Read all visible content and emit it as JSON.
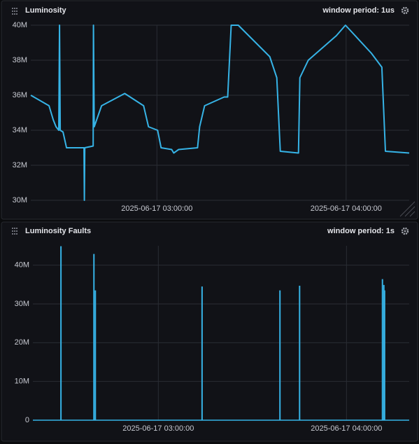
{
  "chart_data": [
    {
      "type": "line",
      "title": "Luminosity",
      "subtitle": "window period: 1us",
      "color": "#36b3e6",
      "grid": true,
      "xlim": [
        "2025-06-17 02:20:00",
        "2025-06-17 04:20:00"
      ],
      "xticks": [
        "2025-06-17 03:00:00",
        "2025-06-17 04:00:00"
      ],
      "ylim": [
        30000000,
        40000000
      ],
      "yticks": [
        {
          "value": 30000000,
          "label": "30M"
        },
        {
          "value": 32000000,
          "label": "32M"
        },
        {
          "value": 34000000,
          "label": "34M"
        },
        {
          "value": 36000000,
          "label": "36M"
        },
        {
          "value": 38000000,
          "label": "38M"
        },
        {
          "value": 40000000,
          "label": "40M"
        }
      ],
      "x": [
        "2025-06-17 02:20:00",
        "2025-06-17 02:25:47",
        "2025-06-17 02:27:07",
        "2025-06-17 02:28:00",
        "2025-06-17 02:28:53",
        "2025-06-17 02:29:07",
        "2025-06-17 02:29:20",
        "2025-06-17 02:30:13",
        "2025-06-17 02:31:20",
        "2025-06-17 02:36:53",
        "2025-06-17 02:37:00",
        "2025-06-17 02:37:07",
        "2025-06-17 02:39:47",
        "2025-06-17 02:39:53",
        "2025-06-17 02:40:07",
        "2025-06-17 02:42:27",
        "2025-06-17 02:49:47",
        "2025-06-17 02:55:47",
        "2025-06-17 02:57:20",
        "2025-06-17 03:00:13",
        "2025-06-17 03:01:20",
        "2025-06-17 03:04:40",
        "2025-06-17 03:05:20",
        "2025-06-17 03:06:53",
        "2025-06-17 03:12:53",
        "2025-06-17 03:13:33",
        "2025-06-17 03:15:07",
        "2025-06-17 03:21:20",
        "2025-06-17 03:22:27",
        "2025-06-17 03:23:33",
        "2025-06-17 03:25:47",
        "2025-06-17 03:35:47",
        "2025-06-17 03:38:00",
        "2025-06-17 03:39:07",
        "2025-06-17 03:44:53",
        "2025-06-17 03:45:20",
        "2025-06-17 03:48:00",
        "2025-06-17 03:56:53",
        "2025-06-17 03:59:47",
        "2025-06-17 04:08:00",
        "2025-06-17 04:11:20",
        "2025-06-17 04:12:27",
        "2025-06-17 04:20:00"
      ],
      "values": [
        36000000,
        35400000,
        34600000,
        34200000,
        34000000,
        40000000,
        34000000,
        33900000,
        33000000,
        33000000,
        30000000,
        33000000,
        33100000,
        40000000,
        34200000,
        35400000,
        36100000,
        35400000,
        34200000,
        34000000,
        33000000,
        32900000,
        32700000,
        32900000,
        33000000,
        34200000,
        35400000,
        35900000,
        35900000,
        40000000,
        40000000,
        38200000,
        37000000,
        32800000,
        32700000,
        37000000,
        38000000,
        39400000,
        40000000,
        38400000,
        37600000,
        32800000,
        32700000
      ]
    },
    {
      "type": "bar",
      "title": "Luminosity Faults",
      "subtitle": "window period: 1s",
      "color": "#36b3e6",
      "grid": true,
      "xlim": [
        "2025-06-17 02:20:00",
        "2025-06-17 04:20:00"
      ],
      "xticks": [
        "2025-06-17 03:00:00",
        "2025-06-17 04:00:00"
      ],
      "ylim": [
        0,
        45000000
      ],
      "yticks": [
        0,
        {
          "value": 10000000,
          "label": "10M"
        },
        {
          "value": 20000000,
          "label": "20M"
        },
        {
          "value": 30000000,
          "label": "30M"
        },
        {
          "value": 40000000,
          "label": "40M"
        }
      ],
      "x": [
        "2025-06-17 02:28:57",
        "2025-06-17 02:39:28",
        "2025-06-17 02:39:55",
        "2025-06-17 03:13:57",
        "2025-06-17 03:38:47",
        "2025-06-17 03:45:03",
        "2025-06-17 04:11:28",
        "2025-06-17 04:11:55",
        "2025-06-17 04:12:09"
      ],
      "values": [
        44900000,
        42900000,
        33500000,
        34500000,
        33500000,
        34700000,
        36400000,
        34900000,
        33500000
      ]
    }
  ]
}
